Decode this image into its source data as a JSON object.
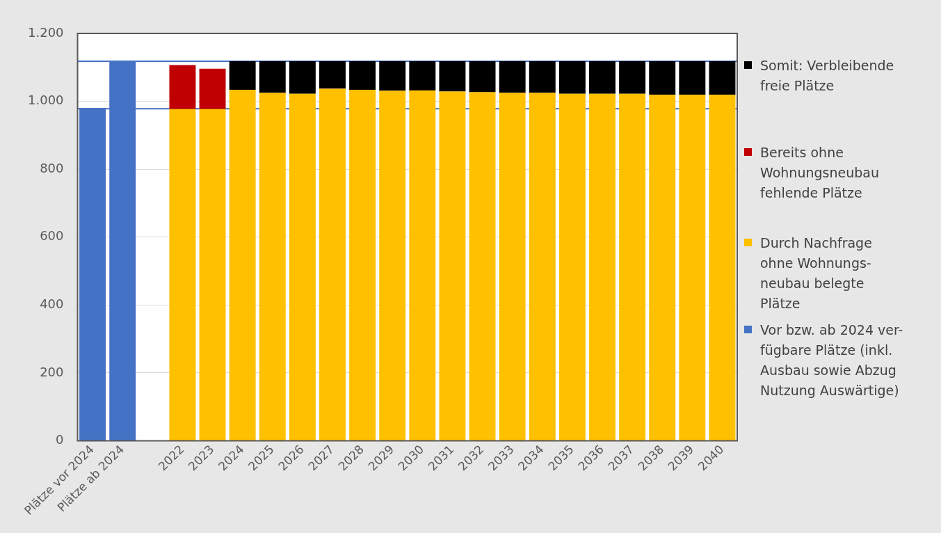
{
  "chart_data": {
    "type": "bar",
    "stacked": true,
    "categories": [
      "Plätze vor 2024",
      "Plätze ab 2024",
      null,
      "2022",
      "2023",
      "2024",
      "2025",
      "2026",
      "2027",
      "2028",
      "2029",
      "2030",
      "2031",
      "2032",
      "2033",
      "2034",
      "2035",
      "2036",
      "2037",
      "2038",
      "2039",
      "2040"
    ],
    "series": [
      {
        "name": "Vor bzw. ab 2024 ver-\nfügbare Plätze (inkl.\nAusbau sowie Abzug\nNutzung Auswärtige)",
        "color": "#4472c4",
        "values": [
          980,
          1118,
          null,
          null,
          null,
          null,
          null,
          null,
          null,
          null,
          null,
          null,
          null,
          null,
          null,
          null,
          null,
          null,
          null,
          null,
          null,
          null
        ]
      },
      {
        "name": "Durch Nachfrage\nohne Wohnungs-\nneubau belegte\nPlätze",
        "color": "#ffc000",
        "values": [
          null,
          null,
          null,
          977,
          977,
          1034,
          1025,
          1022,
          1037,
          1034,
          1031,
          1032,
          1029,
          1027,
          1025,
          1025,
          1022,
          1022,
          1022,
          1019,
          1019,
          1019
        ]
      },
      {
        "name": "Bereits ohne\nWohnungsneubau\nfehlende Plätze",
        "color": "#c00000",
        "values": [
          null,
          null,
          null,
          130,
          119,
          null,
          null,
          null,
          null,
          null,
          null,
          null,
          null,
          null,
          null,
          null,
          null,
          null,
          null,
          null,
          null,
          null
        ]
      },
      {
        "name": "Somit: Verbleibende\nfreie Plätze",
        "color": "#000000",
        "values": [
          null,
          null,
          null,
          null,
          null,
          84,
          93,
          96,
          81,
          84,
          87,
          86,
          89,
          91,
          93,
          93,
          96,
          96,
          96,
          99,
          99,
          99
        ]
      }
    ],
    "ylim": [
      0,
      1200
    ],
    "yticks": [
      0,
      200,
      400,
      600,
      800,
      {
        "value": 1000,
        "label": "1.000"
      },
      {
        "value": 1200,
        "label": "1.200"
      }
    ],
    "grid": "y",
    "legend": "right",
    "ref_lines": [
      {
        "axis": "y",
        "value": 1118,
        "color": "#4472c4"
      },
      {
        "axis": "y",
        "value": 978,
        "color": "#4472c4"
      }
    ]
  }
}
